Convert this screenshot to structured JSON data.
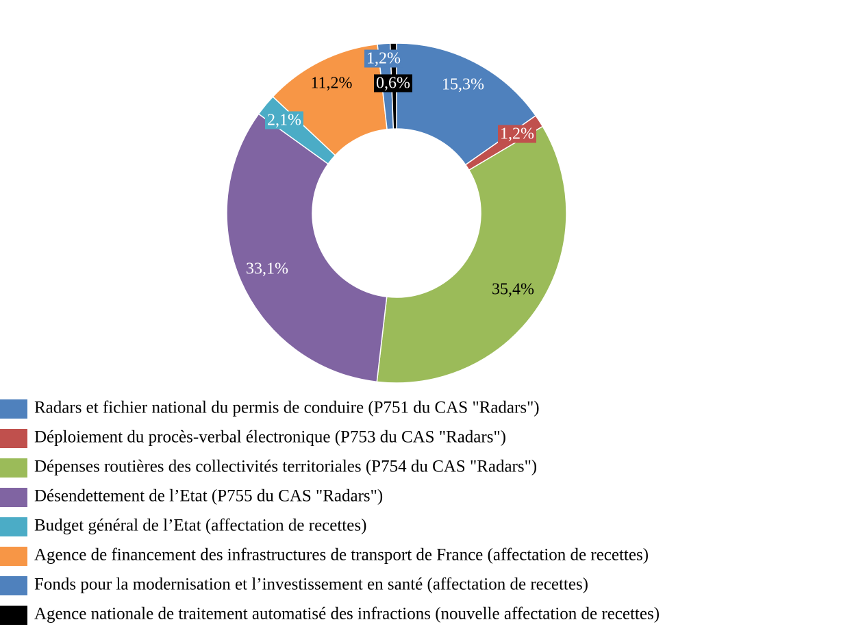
{
  "chart_data": {
    "type": "donut",
    "categories": [
      "Radars et fichier national du permis de conduire (P751 du CAS \"Radars\")",
      "Déploiement du procès-verbal électronique  (P753 du CAS \"Radars\")",
      "Dépenses routières des collectivités territoriales  (P754 du CAS \"Radars\")",
      "Désendettement de l’Etat (P755 du CAS \"Radars\")",
      "Budget général de l’Etat (affectation de recettes)",
      "Agence de financement des infrastructures  de transport de France (affectation de recettes)",
      "Fonds pour la modernisation et l’investissement  en santé (affectation de recettes)",
      "Agence nationale de traitement automatisé des infractions (nouvelle affectation de recettes)"
    ],
    "values": [
      15.3,
      1.2,
      35.4,
      33.1,
      2.1,
      11.2,
      1.2,
      0.6
    ],
    "value_labels": [
      "15,3%",
      "1,2%",
      "35,4%",
      "33,1%",
      "2,1%",
      "11,2%",
      "1,2%",
      "0,6%"
    ],
    "colors": [
      "#4f81bd",
      "#c0504d",
      "#9bbb59",
      "#8064a2",
      "#4bacc6",
      "#f79646",
      "#4f81bd",
      "#000000"
    ],
    "legend": "bottom"
  }
}
